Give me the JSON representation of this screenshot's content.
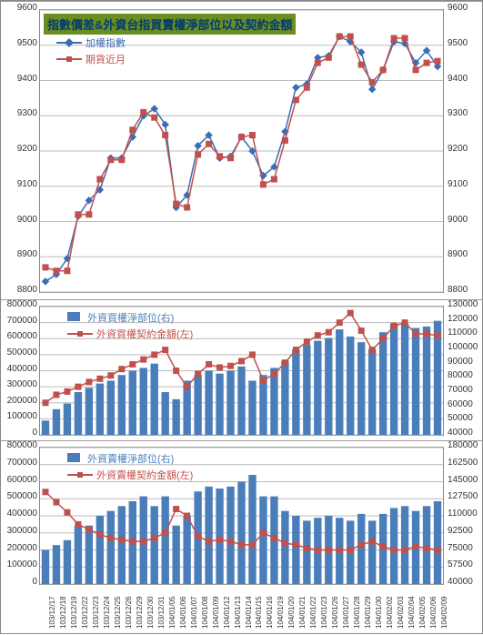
{
  "title": "指數價差&外資台指買賣權淨部位以及契約金額",
  "colors": {
    "series_blue": "#3b6db3",
    "series_red": "#c0504d",
    "bar_fill": "#4a7ebb",
    "title_bg": "#6b8e23",
    "title_text": "#003b71",
    "grid": "#bbbbbb",
    "border": "#888888",
    "text": "#333333",
    "bg": "#ffffff"
  },
  "x_labels": [
    "103/12/17",
    "103/12/18",
    "103/12/19",
    "103/12/22",
    "103/12/23",
    "103/12/24",
    "103/12/25",
    "103/12/26",
    "103/12/29",
    "103/12/30",
    "103/12/31",
    "104/01/05",
    "104/01/06",
    "104/01/07",
    "104/01/08",
    "104/01/09",
    "104/01/12",
    "104/01/13",
    "104/01/14",
    "104/01/15",
    "104/01/16",
    "104/01/19",
    "104/01/20",
    "104/01/21",
    "104/01/22",
    "104/01/23",
    "104/01/26",
    "104/01/27",
    "104/01/28",
    "104/01/29",
    "104/01/30",
    "104/02/02",
    "104/02/03",
    "104/02/04",
    "104/02/05",
    "104/02/06",
    "104/02/09"
  ],
  "panel1": {
    "legend": [
      {
        "label": "加權指數",
        "type": "line-diamond",
        "color": "#3b6db3"
      },
      {
        "label": "期貨近月",
        "type": "line-square",
        "color": "#c0504d"
      }
    ],
    "ylim": [
      8800,
      9600
    ],
    "ytick_step": 100,
    "series_index": [
      8830,
      8850,
      8895,
      9015,
      9060,
      9090,
      9180,
      9180,
      9240,
      9300,
      9320,
      9275,
      9040,
      9075,
      9215,
      9245,
      9180,
      9185,
      9240,
      9200,
      9130,
      9155,
      9255,
      9380,
      9390,
      9465,
      9470,
      9525,
      9510,
      9480,
      9375,
      9430,
      9510,
      9505,
      9450,
      9485,
      9440
    ],
    "series_future": [
      8870,
      8860,
      8860,
      9020,
      9020,
      9120,
      9175,
      9175,
      9260,
      9310,
      9295,
      9245,
      9050,
      9040,
      9190,
      9220,
      9185,
      9180,
      9240,
      9245,
      9105,
      9120,
      9230,
      9345,
      9380,
      9450,
      9465,
      9525,
      9525,
      9445,
      9395,
      9430,
      9520,
      9520,
      9430,
      9450,
      9455
    ]
  },
  "panel2": {
    "legend": [
      {
        "label": "外資買權淨部位(右)",
        "type": "area",
        "color": "#4a7ebb"
      },
      {
        "label": "外資買權契約金額(左)",
        "type": "line-square",
        "color": "#c0504d"
      }
    ],
    "y_left": {
      "lim": [
        0,
        800000
      ],
      "step": 100000
    },
    "y_right": {
      "lim": [
        40000,
        130000
      ],
      "step": 10000
    },
    "bars": [
      50000,
      58000,
      62000,
      70000,
      73000,
      76000,
      78000,
      82000,
      85000,
      87000,
      90000,
      70000,
      65000,
      78000,
      82000,
      85000,
      83000,
      85000,
      88000,
      78000,
      82000,
      87000,
      92000,
      100000,
      103000,
      106000,
      108000,
      114000,
      109000,
      105000,
      100000,
      112000,
      118000,
      118000,
      115000,
      116000,
      120000
    ],
    "line": [
      200000,
      250000,
      270000,
      300000,
      330000,
      350000,
      370000,
      410000,
      440000,
      470000,
      500000,
      530000,
      400000,
      300000,
      380000,
      440000,
      420000,
      430000,
      460000,
      500000,
      340000,
      380000,
      450000,
      530000,
      580000,
      620000,
      640000,
      700000,
      760000,
      650000,
      530000,
      600000,
      680000,
      700000,
      630000,
      630000,
      620000
    ]
  },
  "panel3": {
    "legend": [
      {
        "label": "外資賣權淨部位(右)",
        "type": "area",
        "color": "#4a7ebb"
      },
      {
        "label": "外資賣權契約金額(左)",
        "type": "line-square",
        "color": "#c0504d"
      }
    ],
    "y_left": {
      "lim": [
        0,
        800000
      ],
      "step": 100000
    },
    "y_right": {
      "lim": [
        40000,
        180000
      ],
      "step": 17500
    },
    "bars": [
      75000,
      80000,
      85000,
      100000,
      100000,
      110000,
      115000,
      120000,
      125000,
      130000,
      120000,
      130000,
      100000,
      110000,
      135000,
      140000,
      138000,
      140000,
      145000,
      152000,
      130000,
      130000,
      115000,
      110000,
      105000,
      108000,
      110000,
      108000,
      105000,
      112000,
      105000,
      112000,
      118000,
      120000,
      115000,
      120000,
      125000
    ],
    "line": [
      540000,
      480000,
      420000,
      350000,
      320000,
      290000,
      270000,
      260000,
      250000,
      250000,
      270000,
      300000,
      440000,
      400000,
      280000,
      250000,
      260000,
      250000,
      230000,
      230000,
      300000,
      270000,
      240000,
      230000,
      210000,
      200000,
      200000,
      200000,
      200000,
      230000,
      250000,
      220000,
      200000,
      200000,
      220000,
      210000,
      200000
    ]
  }
}
